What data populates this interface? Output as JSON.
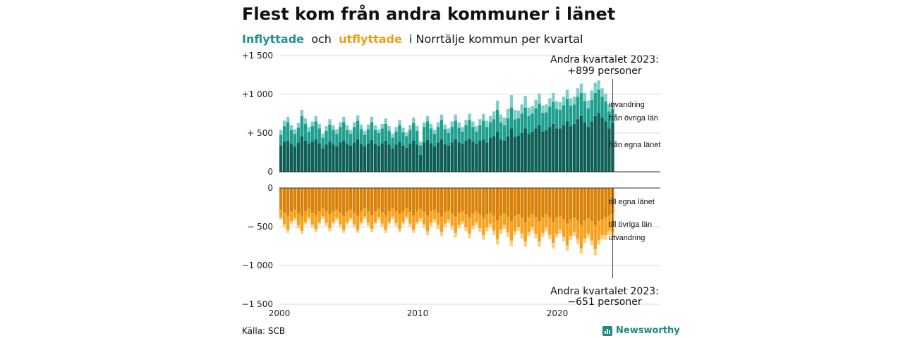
{
  "header": {
    "title": "Flest kom från andra kommuner i länet",
    "subtitle_in": "Inflyttade",
    "subtitle_och": "och",
    "subtitle_out": "utflyttade",
    "subtitle_rest": "i Norrtälje kommun per kvartal"
  },
  "footer": {
    "source": "Källa: SCB",
    "brand": "Newsworthy"
  },
  "colors": {
    "in_egna": "#0d5e55",
    "in_ovriga": "#1e9e8f",
    "in_invandring": "#7ed0c6",
    "out_egna": "#d98207",
    "out_ovriga": "#f7a21e",
    "out_utvandring": "#fbcf86"
  },
  "chart_data": {
    "type": "bar",
    "x_start": "2000 Q1",
    "x_end": "2023 Q2",
    "x_ticks": [
      "2000",
      "2010",
      "2020"
    ],
    "y_ticks_top": [
      "+1 500",
      "+1 000",
      "+ 500",
      "0"
    ],
    "y_ticks_bottom": [
      "0",
      "− 500",
      "−1 000",
      "−1 500"
    ],
    "ylim_top": [
      0,
      1500
    ],
    "ylim_bottom": [
      -1500,
      0
    ],
    "series_in": [
      "från egna länet",
      "från övriga län",
      "invandring"
    ],
    "series_out": [
      "till egna länet",
      "till övriga län",
      "utvandring"
    ],
    "annotations": {
      "in_line1": "Andra kvartalet 2023:",
      "in_line2": "+899 personer",
      "out_line1": "Andra kvartalet 2023:",
      "out_line2": "−651 personer"
    },
    "in_egna": [
      340,
      390,
      400,
      360,
      330,
      380,
      460,
      400,
      360,
      390,
      420,
      370,
      300,
      350,
      390,
      350,
      330,
      380,
      400,
      360,
      340,
      380,
      420,
      360,
      330,
      370,
      410,
      360,
      340,
      370,
      400,
      350,
      300,
      350,
      390,
      340,
      310,
      360,
      400,
      350,
      220,
      380,
      410,
      370,
      330,
      380,
      420,
      360,
      340,
      380,
      420,
      380,
      360,
      400,
      430,
      390,
      360,
      400,
      420,
      380,
      440,
      460,
      520,
      420,
      400,
      460,
      560,
      450,
      470,
      500,
      560,
      490,
      520,
      560,
      600,
      520,
      540,
      580,
      620,
      560,
      560,
      600,
      650,
      590,
      620,
      680,
      720,
      640,
      580,
      650,
      720,
      760,
      700,
      650,
      560,
      630
    ],
    "in_ovriga": [
      140,
      200,
      240,
      180,
      160,
      190,
      260,
      220,
      160,
      200,
      230,
      190,
      140,
      180,
      220,
      190,
      160,
      200,
      240,
      180,
      150,
      200,
      240,
      190,
      150,
      180,
      230,
      180,
      160,
      190,
      220,
      180,
      140,
      170,
      210,
      170,
      150,
      180,
      230,
      180,
      120,
      200,
      240,
      190,
      160,
      200,
      250,
      190,
      160,
      200,
      240,
      190,
      160,
      200,
      240,
      190,
      160,
      200,
      240,
      200,
      200,
      220,
      280,
      220,
      200,
      230,
      270,
      230,
      220,
      250,
      270,
      230,
      230,
      260,
      280,
      240,
      230,
      260,
      280,
      250,
      240,
      260,
      290,
      260,
      250,
      290,
      300,
      270,
      240,
      280,
      300,
      300,
      270,
      260,
      220,
      180
    ],
    "in_invandring": [
      60,
      70,
      70,
      60,
      60,
      60,
      80,
      70,
      60,
      60,
      70,
      60,
      50,
      60,
      70,
      60,
      60,
      60,
      70,
      60,
      50,
      60,
      70,
      60,
      50,
      60,
      70,
      60,
      50,
      60,
      70,
      60,
      50,
      60,
      70,
      60,
      50,
      60,
      70,
      60,
      50,
      60,
      70,
      60,
      50,
      60,
      70,
      60,
      60,
      70,
      80,
      70,
      60,
      70,
      80,
      70,
      70,
      80,
      90,
      80,
      80,
      100,
      120,
      100,
      100,
      120,
      160,
      120,
      100,
      120,
      150,
      110,
      100,
      110,
      130,
      100,
      100,
      110,
      120,
      100,
      100,
      110,
      120,
      100,
      100,
      110,
      120,
      110,
      100,
      120,
      130,
      120,
      110,
      100,
      90,
      89
    ],
    "out_egna": [
      280,
      320,
      360,
      300,
      280,
      330,
      370,
      300,
      270,
      320,
      350,
      300,
      260,
      300,
      340,
      300,
      280,
      320,
      360,
      300,
      280,
      320,
      360,
      300,
      260,
      300,
      350,
      300,
      270,
      310,
      350,
      300,
      260,
      300,
      340,
      300,
      260,
      310,
      350,
      300,
      270,
      310,
      360,
      300,
      280,
      320,
      370,
      310,
      290,
      330,
      370,
      320,
      300,
      340,
      380,
      330,
      300,
      340,
      390,
      340,
      320,
      360,
      420,
      360,
      330,
      370,
      430,
      370,
      340,
      380,
      440,
      380,
      340,
      380,
      430,
      380,
      340,
      380,
      440,
      380,
      360,
      400,
      460,
      400,
      380,
      420,
      480,
      420,
      390,
      430,
      480,
      430,
      400,
      380,
      350,
      330
    ],
    "out_ovriga": [
      100,
      150,
      180,
      130,
      110,
      150,
      180,
      140,
      110,
      150,
      180,
      140,
      110,
      150,
      180,
      140,
      110,
      150,
      180,
      140,
      110,
      150,
      180,
      140,
      110,
      150,
      180,
      140,
      110,
      150,
      190,
      140,
      110,
      150,
      190,
      140,
      110,
      150,
      190,
      140,
      120,
      160,
      200,
      150,
      120,
      160,
      200,
      150,
      120,
      160,
      210,
      160,
      130,
      170,
      210,
      160,
      140,
      180,
      220,
      170,
      140,
      190,
      240,
      180,
      150,
      200,
      250,
      190,
      160,
      210,
      250,
      190,
      160,
      210,
      260,
      200,
      170,
      220,
      270,
      210,
      180,
      230,
      280,
      220,
      190,
      240,
      300,
      230,
      200,
      250,
      310,
      240,
      210,
      230,
      200,
      240
    ],
    "out_utvandring": [
      30,
      40,
      40,
      30,
      30,
      40,
      40,
      30,
      30,
      40,
      40,
      30,
      30,
      40,
      40,
      30,
      30,
      40,
      40,
      30,
      30,
      40,
      40,
      30,
      30,
      40,
      40,
      30,
      30,
      40,
      40,
      30,
      30,
      40,
      40,
      30,
      30,
      40,
      40,
      30,
      40,
      50,
      50,
      40,
      40,
      50,
      50,
      40,
      40,
      50,
      60,
      40,
      40,
      50,
      60,
      40,
      40,
      50,
      60,
      50,
      50,
      60,
      70,
      50,
      50,
      60,
      70,
      50,
      50,
      60,
      70,
      50,
      50,
      60,
      70,
      50,
      50,
      60,
      70,
      50,
      50,
      60,
      70,
      50,
      50,
      60,
      70,
      60,
      50,
      60,
      80,
      60,
      50,
      60,
      60,
      81
    ]
  }
}
